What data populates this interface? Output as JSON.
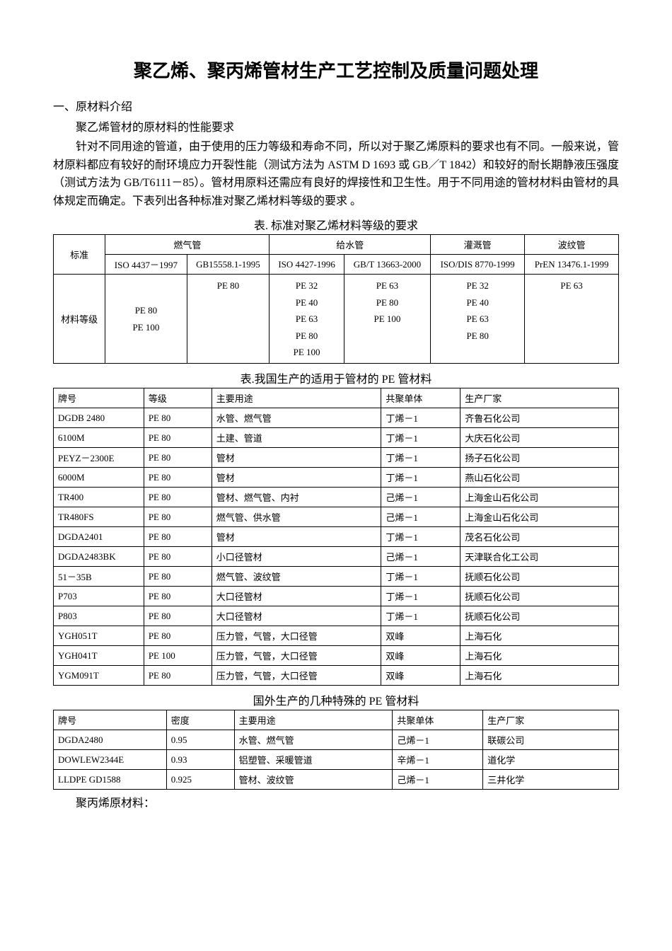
{
  "title": "聚乙烯、聚丙烯管材生产工艺控制及质量问题处理",
  "section1": {
    "heading": "一、原材料介绍",
    "subheading": "聚乙烯管材的原材料的性能要求",
    "body": "针对不同用途的管道，由于使用的压力等级和寿命不同，所以对于聚乙烯原料的要求也有不同。一般来说，管材原料都应有较好的耐环境应力开裂性能（测试方法为 ASTM D 1693 或 GB／T 1842）和较好的耐长期静液压强度（测试方法为 GB/T6111－85）。管材用原料还需应有良好的焊接性和卫生性。用于不同用途的管材材料由管材的具体规定而确定。下表列出各种标准对聚乙烯材料等级的要求  。"
  },
  "table1": {
    "caption": "表. 标准对聚乙烯材料等级的要求",
    "header": {
      "label": "标准",
      "gas_pipe": "燃气管",
      "water_pipe": "给水管",
      "irrigation_pipe": "灌溉管",
      "corrugated_pipe": "波纹管"
    },
    "standards": {
      "gas1": "ISO 4437－1997",
      "gas2": "GB15558.1-1995",
      "water1": "ISO 4427-1996",
      "water2": "GB/T 13663-2000",
      "irrigation": "ISO/DIS 8770-1999",
      "corrugated": "PrEN 13476.1-1999"
    },
    "material_label": "材料等级",
    "materials": {
      "gas1": "PE 80\nPE 100",
      "gas2": "PE 80",
      "water1": "PE 32\nPE 40\nPE 63\nPE 80\nPE 100",
      "water2": "PE 63\nPE 80\nPE 100",
      "irrigation": "PE 32\nPE 40\nPE 63\nPE 80",
      "corrugated": "PE 63"
    }
  },
  "table2": {
    "caption": "表.我国生产的适用于管材的 PE 管材料",
    "headers": {
      "brand": "牌号",
      "grade": "等级",
      "usage": "主要用途",
      "comonomer": "共聚单体",
      "manufacturer": "生产厂家"
    },
    "rows": [
      [
        "DGDB 2480",
        "PE 80",
        "水管、燃气管",
        "丁烯－1",
        "齐鲁石化公司"
      ],
      [
        "6100M",
        "PE 80",
        "土建、管道",
        "丁烯－1",
        "大庆石化公司"
      ],
      [
        "PEYZ－2300E",
        "PE 80",
        "管材",
        "丁烯－1",
        "扬子石化公司"
      ],
      [
        "6000M",
        "PE 80",
        "管材",
        "丁烯－1",
        "燕山石化公司"
      ],
      [
        "TR400",
        "PE 80",
        "管材、燃气管、内衬",
        "己烯－1",
        "上海金山石化公司"
      ],
      [
        "TR480FS",
        "PE 80",
        "燃气管、供水管",
        "己烯－1",
        "上海金山石化公司"
      ],
      [
        "DGDA2401",
        "PE 80",
        "管材",
        "丁烯－1",
        "茂名石化公司"
      ],
      [
        "DGDA2483BK",
        "PE 80",
        "小口径管材",
        "己烯－1",
        "天津联合化工公司"
      ],
      [
        "51－35B",
        "PE 80",
        "燃气管、波纹管",
        "丁烯－1",
        "抚顺石化公司"
      ],
      [
        "P703",
        "PE 80",
        "大口径管材",
        "丁烯－1",
        "抚顺石化公司"
      ],
      [
        "P803",
        "PE 80",
        "大口径管材",
        "丁烯－1",
        "抚顺石化公司"
      ],
      [
        "YGH051T",
        "PE 80",
        "压力管，气管，大口径管",
        "双峰",
        "上海石化"
      ],
      [
        "YGH041T",
        "PE 100",
        "压力管，气管，大口径管",
        "双峰",
        "上海石化"
      ],
      [
        "YGM091T",
        "PE 80",
        "压力管，气管，大口径管",
        "双峰",
        "上海石化"
      ]
    ]
  },
  "table3": {
    "caption": "国外生产的几种特殊的 PE 管材料",
    "headers": {
      "brand": "牌号",
      "density": "密度",
      "usage": "主要用途",
      "comonomer": "共聚单体",
      "manufacturer": "生产厂家"
    },
    "rows": [
      [
        "DGDA2480",
        "0.95",
        "水管、燃气管",
        "己烯－1",
        "联碳公司"
      ],
      [
        "DOWLEW2344E",
        "0.93",
        "铝塑管、采暖管道",
        "辛烯－1",
        "道化学"
      ],
      [
        "LLDPE GD1588",
        "0.925",
        "管材、波纹管",
        "己烯－1",
        "三井化学"
      ]
    ]
  },
  "footer": "聚丙烯原材料："
}
